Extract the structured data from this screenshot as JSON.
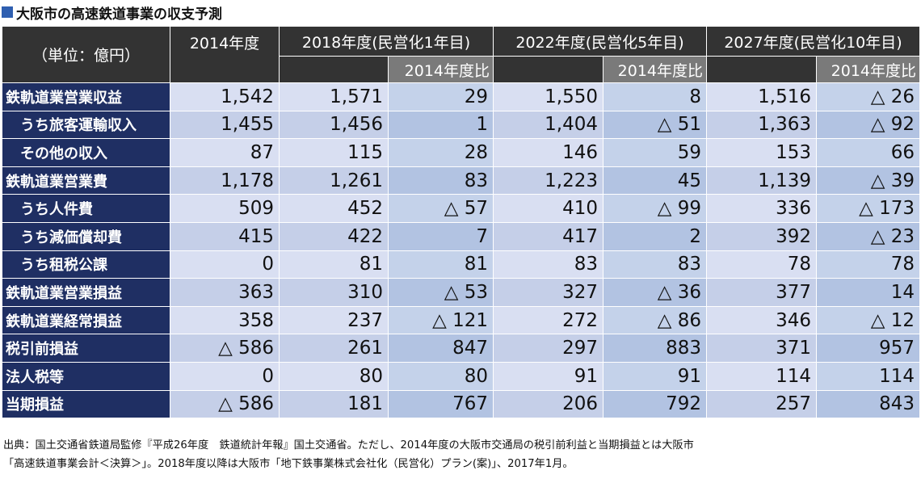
{
  "title": "大阪市の高速鉄道事業の収支予測",
  "header": {
    "unit": "（単位：億円）",
    "columns": [
      "2014年度",
      "2018年度(民営化1年目)",
      "2022年度(民営化5年目)",
      "2027年度(民営化10年目)"
    ],
    "compare_label": "2014年度比"
  },
  "rows": [
    {
      "label": "鉄軌道業営業収益",
      "values": [
        "1,542",
        "1,571",
        "29",
        "1,550",
        "8",
        "1,516",
        "△ 26"
      ]
    },
    {
      "label": "うち旅客運輸収入",
      "values": [
        "1,455",
        "1,456",
        "1",
        "1,404",
        "△ 51",
        "1,363",
        "△ 92"
      ]
    },
    {
      "label": "その他の収入",
      "values": [
        "87",
        "115",
        "28",
        "146",
        "59",
        "153",
        "66"
      ]
    },
    {
      "label": "鉄軌道業営業費",
      "values": [
        "1,178",
        "1,261",
        "83",
        "1,223",
        "45",
        "1,139",
        "△ 39"
      ]
    },
    {
      "label": "うち人件費",
      "values": [
        "509",
        "452",
        "△ 57",
        "410",
        "△ 99",
        "336",
        "△ 173"
      ]
    },
    {
      "label": "うち減価償却費",
      "values": [
        "415",
        "422",
        "7",
        "417",
        "2",
        "392",
        "△ 23"
      ]
    },
    {
      "label": "うち租税公課",
      "values": [
        "0",
        "81",
        "81",
        "83",
        "83",
        "78",
        "78"
      ]
    },
    {
      "label": "鉄軌道業営業損益",
      "values": [
        "363",
        "310",
        "△ 53",
        "327",
        "△ 36",
        "377",
        "14"
      ]
    },
    {
      "label": "鉄軌道業経常損益",
      "values": [
        "358",
        "237",
        "△ 121",
        "272",
        "△ 86",
        "346",
        "△ 12"
      ]
    },
    {
      "label": "税引前損益",
      "values": [
        "△ 586",
        "261",
        "847",
        "297",
        "883",
        "371",
        "957"
      ]
    },
    {
      "label": "法人税等",
      "values": [
        "0",
        "80",
        "80",
        "91",
        "91",
        "114",
        "114"
      ]
    },
    {
      "label": "当期損益",
      "values": [
        "△ 586",
        "181",
        "767",
        "206",
        "792",
        "257",
        "843"
      ]
    }
  ],
  "footer": {
    "line1": "出典：国土交通省鉄道局監修『平成26年度　鉄道統計年報』国土交通省。ただし、2014年度の大阪市交通局の税引前利益と当期損益とは大阪市",
    "line2": "「高速鉄道事業会計＜決算＞」。2018年度以降は大阪市「地下鉄事業株式会社化（民営化）プラン(案)」、2017年1月。"
  },
  "colors": {
    "title_square": "#2f5fb0",
    "header_bg": "#333333",
    "compare_header_bg": "#7a7a7a",
    "row_label_bg": "#1f2f63",
    "cell_light": "#d9dff2",
    "cell_compare": "#c4d2ea"
  }
}
